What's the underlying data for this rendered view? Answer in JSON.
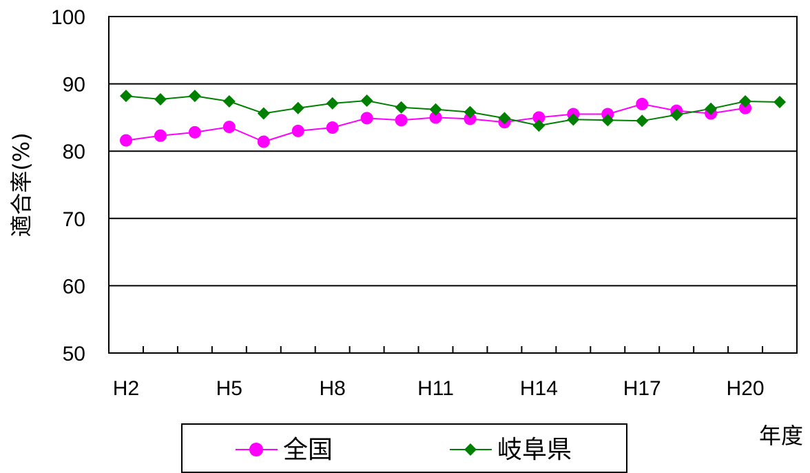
{
  "chart_data": {
    "type": "line",
    "ylabel": "適合率(%)",
    "xlabel": "年度",
    "ylim": [
      50,
      100
    ],
    "yticks": [
      "50",
      "60",
      "70",
      "80",
      "90",
      "100"
    ],
    "categories": [
      "H2",
      "H3",
      "H4",
      "H5",
      "H6",
      "H7",
      "H8",
      "H9",
      "H10",
      "H11",
      "H12",
      "H13",
      "H14",
      "H15",
      "H16",
      "H17",
      "H18",
      "H19",
      "H20",
      "H21"
    ],
    "xtick_labels": [
      "H2",
      "H5",
      "H8",
      "H11",
      "H14",
      "H17",
      "H20"
    ],
    "grid": true,
    "legend_position": "bottom",
    "series": [
      {
        "name": "全国",
        "color": "#ff00ff",
        "marker": "circle",
        "values": [
          81.6,
          82.3,
          82.8,
          83.6,
          81.4,
          83.0,
          83.5,
          84.9,
          84.6,
          85.0,
          84.8,
          84.3,
          85.0,
          85.5,
          85.5,
          87.0,
          86.0,
          85.6,
          86.4,
          null
        ]
      },
      {
        "name": "岐阜県",
        "color": "#008000",
        "marker": "diamond",
        "values": [
          88.2,
          87.7,
          88.2,
          87.4,
          85.6,
          86.4,
          87.1,
          87.5,
          86.5,
          86.2,
          85.8,
          84.9,
          83.8,
          84.7,
          84.6,
          84.5,
          85.4,
          86.3,
          87.4,
          87.3
        ]
      }
    ]
  }
}
